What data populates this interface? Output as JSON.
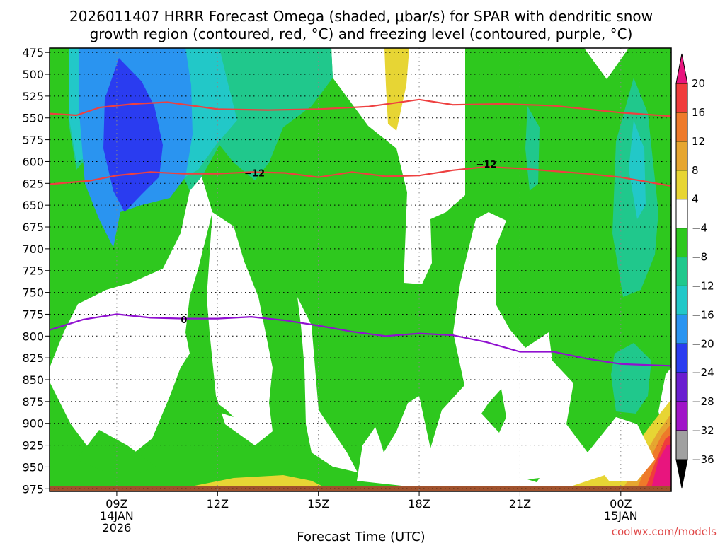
{
  "chart_data": {
    "type": "heatmap",
    "title_line1": "2026011407 HRRR Forecast Omega (shaded, μbar/s) for SPAR with dendritic snow",
    "title_line2": "growth region (contoured, red, °C) and freezing level (contoured, purple, °C)",
    "xlabel": "Forecast Time (UTC)",
    "credit": "coolwx.com/models",
    "x_range_hours": [
      7.0,
      25.5
    ],
    "x_ticks": [
      {
        "hour": 9,
        "label": "09Z",
        "sub1": "14JAN",
        "sub2": "2026"
      },
      {
        "hour": 12,
        "label": "12Z",
        "sub1": "",
        "sub2": ""
      },
      {
        "hour": 15,
        "label": "15Z",
        "sub1": "",
        "sub2": ""
      },
      {
        "hour": 18,
        "label": "18Z",
        "sub1": "",
        "sub2": ""
      },
      {
        "hour": 21,
        "label": "21Z",
        "sub1": "",
        "sub2": ""
      },
      {
        "hour": 24,
        "label": "00Z",
        "sub1": "15JAN",
        "sub2": ""
      }
    ],
    "y_range_hpa": [
      470,
      978
    ],
    "y_ticks": [
      "475",
      "500",
      "525",
      "550",
      "575",
      "600",
      "625",
      "650",
      "675",
      "700",
      "725",
      "750",
      "775",
      "800",
      "825",
      "850",
      "875",
      "900",
      "925",
      "950",
      "975"
    ],
    "colorbar": {
      "labels": [
        "20",
        "16",
        "12",
        "8",
        "4",
        "−4",
        "−8",
        "−12",
        "−16",
        "−20",
        "−24",
        "−28",
        "−32",
        "−36"
      ],
      "colors": [
        "#e8157e",
        "#f03c3c",
        "#ee7a2a",
        "#e6a630",
        "#e7d534",
        "#ffffff",
        "#2ec81e",
        "#20c88c",
        "#22c8c8",
        "#2a94f0",
        "#2a3cf0",
        "#6a1ed0",
        "#a014c8",
        "#a0a0a0"
      ]
    },
    "shade_levels": [
      {
        "name": "omega -4 to -8",
        "color": "#2ec81e"
      },
      {
        "name": "omega -8 to -12",
        "color": "#20c88c"
      },
      {
        "name": "omega -12 to -16",
        "color": "#22c8c8"
      },
      {
        "name": "omega -16 to -20",
        "color": "#2a94f0"
      },
      {
        "name": "omega -20 to -24",
        "color": "#2a3cf0"
      },
      {
        "name": "omega 4 to 8",
        "color": "#e7d534"
      },
      {
        "name": "omega 8 to 12",
        "color": "#e6a630"
      },
      {
        "name": "omega 12 to 16",
        "color": "#ee7a2a"
      },
      {
        "name": "omega 16 to 20",
        "color": "#f03c3c"
      },
      {
        "name": "omega >20",
        "color": "#e8157e"
      }
    ],
    "contours": [
      {
        "name": "dgz-top",
        "value": "",
        "color": "#ee4040",
        "points": [
          [
            7.0,
            545
          ],
          [
            7.8,
            547
          ],
          [
            8.5,
            538
          ],
          [
            9.5,
            534
          ],
          [
            10.5,
            532
          ],
          [
            12,
            540
          ],
          [
            13.5,
            541
          ],
          [
            15,
            540
          ],
          [
            16.5,
            537
          ],
          [
            18,
            529
          ],
          [
            19,
            535
          ],
          [
            20.5,
            534
          ],
          [
            22,
            536
          ],
          [
            24,
            544
          ],
          [
            25.5,
            548
          ]
        ]
      },
      {
        "name": "dgz-bottom",
        "value": "-12",
        "color": "#ee4040",
        "points": [
          [
            7.0,
            626
          ],
          [
            8.2,
            622
          ],
          [
            9,
            616
          ],
          [
            10,
            612
          ],
          [
            11,
            614
          ],
          [
            12,
            614
          ],
          [
            13,
            612
          ],
          [
            14,
            613
          ],
          [
            15,
            618
          ],
          [
            16,
            612
          ],
          [
            17,
            617
          ],
          [
            18,
            616
          ],
          [
            19,
            610
          ],
          [
            20,
            606
          ],
          [
            21,
            608
          ],
          [
            22,
            611
          ],
          [
            23,
            614
          ],
          [
            24,
            618
          ],
          [
            25.5,
            628
          ]
        ]
      },
      {
        "name": "freezing-level",
        "value": "0",
        "color": "#9010d0",
        "points": [
          [
            7.0,
            793
          ],
          [
            8,
            781
          ],
          [
            9,
            775
          ],
          [
            10,
            779
          ],
          [
            11,
            780
          ],
          [
            12,
            780
          ],
          [
            13,
            778
          ],
          [
            14,
            782
          ],
          [
            15,
            788
          ],
          [
            16,
            795
          ],
          [
            17,
            800
          ],
          [
            18,
            797
          ],
          [
            19,
            799
          ],
          [
            20,
            807
          ],
          [
            21,
            818
          ],
          [
            22,
            818
          ],
          [
            23,
            826
          ],
          [
            24,
            832
          ],
          [
            25.5,
            834
          ]
        ]
      }
    ],
    "contour_labels": [
      {
        "contour": "dgz-bottom",
        "text": "−12",
        "hour": 13.1,
        "hpa": 613
      },
      {
        "contour": "dgz-bottom",
        "text": "−12",
        "hour": 20.0,
        "hpa": 603
      },
      {
        "contour": "freezing-level",
        "text": "0",
        "hour": 11.0,
        "hpa": 781
      }
    ]
  }
}
